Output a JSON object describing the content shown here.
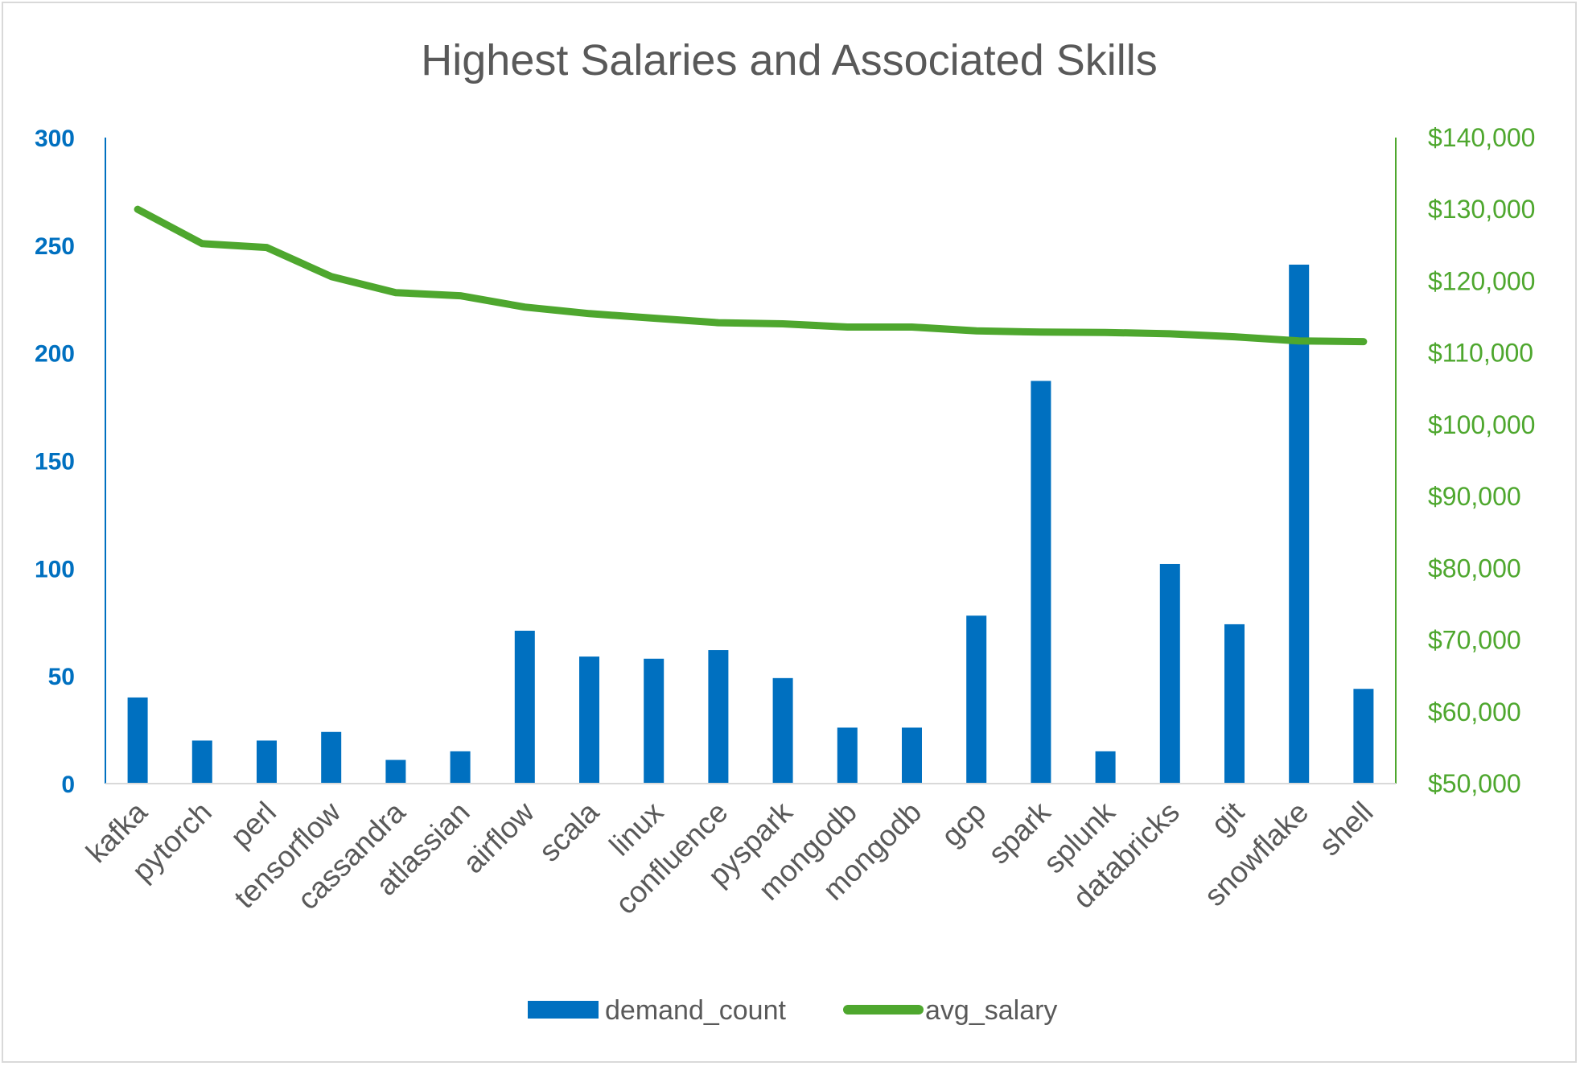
{
  "chart_data": {
    "type": "bar+line",
    "title": "Highest Salaries and Associated Skills",
    "categories": [
      "kafka",
      "pytorch",
      "perl",
      "tensorflow",
      "cassandra",
      "atlassian",
      "airflow",
      "scala",
      "linux",
      "confluence",
      "pyspark",
      "mongodb",
      "mongodb",
      "gcp",
      "spark",
      "splunk",
      "databricks",
      "git",
      "snowflake",
      "shell"
    ],
    "series": [
      {
        "name": "demand_count",
        "type": "bar",
        "axis": "left",
        "color": "#0070c0",
        "values": [
          40,
          20,
          20,
          24,
          11,
          15,
          71,
          59,
          58,
          62,
          49,
          26,
          26,
          78,
          187,
          15,
          102,
          74,
          241,
          44
        ]
      },
      {
        "name": "avg_salary",
        "type": "line",
        "axis": "right",
        "color": "#4ea72e",
        "values": [
          129999,
          125226,
          124686,
          120647,
          118407,
          117966,
          116387,
          115480,
          114834,
          114210,
          114058,
          113608,
          113608,
          113065,
          112896,
          112856,
          112666,
          112250,
          111676,
          111575
        ]
      }
    ],
    "y_left": {
      "range": [
        0,
        300
      ],
      "ticks": [
        "0",
        "50",
        "100",
        "150",
        "200",
        "250",
        "300"
      ],
      "color": "#0070c0"
    },
    "y_right": {
      "range": [
        50000,
        140000
      ],
      "ticks": [
        "$50,000",
        "$60,000",
        "$70,000",
        "$80,000",
        "$90,000",
        "$100,000",
        "$110,000",
        "$120,000",
        "$130,000",
        "$140,000"
      ],
      "color": "#4ea72e"
    },
    "grid": false,
    "legend_position": "bottom"
  }
}
